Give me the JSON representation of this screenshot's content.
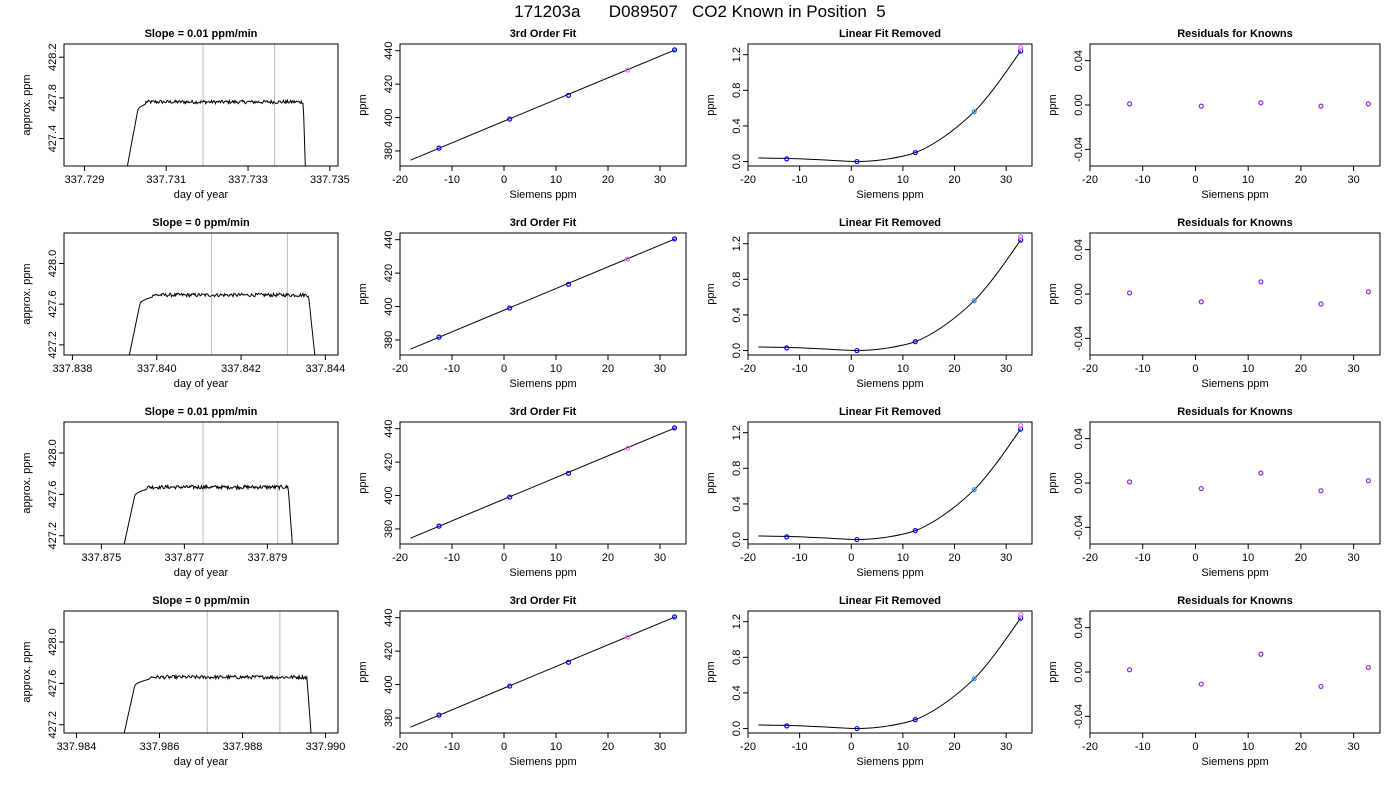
{
  "figure": {
    "title": "171203a      D089507   CO2 Known in Position  5"
  },
  "chart_data": [
    {
      "type": "line",
      "title": "Slope =  0.01  ppm/min",
      "xlabel": "day of year",
      "ylabel": "approx. ppm",
      "xlim": [
        337.7285,
        337.7352
      ],
      "ylim": [
        427.13,
        428.33
      ],
      "xticks": [
        "337.729",
        "337.731",
        "337.733",
        "337.735"
      ],
      "xtick_values": [
        337.729,
        337.731,
        337.733,
        337.735
      ],
      "yticks": [
        "427.4",
        "427.8",
        "428.2"
      ],
      "ytick_values": [
        427.4,
        427.8,
        428.2
      ],
      "vlines": [
        337.7319,
        337.73365
      ],
      "shape": {
        "x_start": 337.73005,
        "x_rise": 337.7303,
        "x_plateau": 337.7305,
        "x_fall_start": 337.73435,
        "x_end": 337.7344,
        "start_y": 427.13,
        "plateau_y": 427.76,
        "end_y": 427.13
      }
    },
    {
      "type": "line",
      "title": "3rd Order Fit",
      "xlabel": "Siemens ppm",
      "ylabel": "ppm",
      "xlim": [
        -20,
        35
      ],
      "ylim": [
        371,
        444
      ],
      "xticks": [
        "-20",
        "-10",
        "0",
        "10",
        "20",
        "30"
      ],
      "xtick_values": [
        -20,
        -10,
        0,
        10,
        20,
        30
      ],
      "yticks": [
        "380",
        "400",
        "420",
        "440"
      ],
      "ytick_values": [
        380,
        400,
        420,
        440
      ],
      "fit_line": {
        "x": [
          -18,
          33
        ],
        "y": [
          374.5,
          440.6
        ]
      },
      "points": [
        {
          "x": -12.5,
          "y": 381.7,
          "color": "#0000ff"
        },
        {
          "x": 1.1,
          "y": 399.1,
          "color": "#0000ff"
        },
        {
          "x": 12.4,
          "y": 413.3,
          "color": "#0000ff"
        },
        {
          "x": 23.8,
          "y": 428.4,
          "color": "#ff66ff"
        },
        {
          "x": 32.8,
          "y": 440.5,
          "color": "#0000ff"
        }
      ]
    },
    {
      "type": "line",
      "title": "Linear Fit Removed",
      "xlabel": "Siemens ppm",
      "ylabel": "ppm",
      "xlim": [
        -20,
        35
      ],
      "ylim": [
        -0.05,
        1.32
      ],
      "xticks": [
        "-20",
        "-10",
        "0",
        "10",
        "20",
        "30"
      ],
      "xtick_values": [
        -20,
        -10,
        0,
        10,
        20,
        30
      ],
      "yticks": [
        "0.0",
        "0.4",
        "0.8",
        "1.2"
      ],
      "ytick_values": [
        0,
        0.4,
        0.8,
        1.2
      ],
      "fit_curve": {
        "x": [
          -18,
          -12.5,
          -6,
          1.1,
          6,
          12.4,
          18,
          23.8,
          28,
          32.8
        ],
        "y": [
          0.04,
          0.035,
          0.02,
          0.0,
          0.02,
          0.1,
          0.28,
          0.56,
          0.85,
          1.24
        ]
      },
      "points": [
        {
          "x": -12.5,
          "y": 0.03,
          "color": "#0000ff"
        },
        {
          "x": 1.1,
          "y": 0.0,
          "color": "#0000ff"
        },
        {
          "x": 12.4,
          "y": 0.1,
          "color": "#0000ff"
        },
        {
          "x": 23.8,
          "y": 0.56,
          "color": "#1e90ff"
        },
        {
          "x": 32.8,
          "y": 1.24,
          "color": "#0000ff"
        },
        {
          "x": 32.8,
          "y": 1.28,
          "color": "#ff66ff"
        }
      ]
    },
    {
      "type": "scatter",
      "title": "Residuals for Knowns",
      "xlabel": "Siemens ppm",
      "ylabel": "ppm",
      "xlim": [
        -20,
        35
      ],
      "ylim": [
        -0.055,
        0.055
      ],
      "xticks": [
        "-20",
        "-10",
        "0",
        "10",
        "20",
        "30"
      ],
      "xtick_values": [
        -20,
        -10,
        0,
        10,
        20,
        30
      ],
      "yticks": [
        "-0.04",
        "0.00",
        "0.04"
      ],
      "ytick_values": [
        -0.04,
        0,
        0.04
      ],
      "points": [
        {
          "x": -12.5,
          "y": 0.001,
          "color": "#8a2be2"
        },
        {
          "x": 1.1,
          "y": -0.001,
          "color": "#8a2be2"
        },
        {
          "x": 12.4,
          "y": 0.002,
          "color": "#8a2be2"
        },
        {
          "x": 23.8,
          "y": -0.001,
          "color": "#8a2be2"
        },
        {
          "x": 32.8,
          "y": 0.001,
          "color": "#8a2be2"
        }
      ]
    },
    {
      "type": "line",
      "title": "Slope =  0  ppm/min",
      "xlabel": "day of year",
      "ylabel": "approx. ppm",
      "xlim": [
        337.8378,
        337.8443
      ],
      "ylim": [
        427.1,
        428.3
      ],
      "xticks": [
        "337.838",
        "337.840",
        "337.842",
        "337.844"
      ],
      "xtick_values": [
        337.838,
        337.84,
        337.842,
        337.844
      ],
      "yticks": [
        "427.2",
        "427.6",
        "428.0"
      ],
      "ytick_values": [
        427.2,
        427.6,
        428.0
      ],
      "vlines": [
        337.8413,
        337.8431
      ],
      "shape": {
        "x_start": 337.83935,
        "x_rise": 337.8396,
        "x_plateau": 337.8399,
        "x_fall_start": 337.8436,
        "x_end": 337.84375,
        "start_y": 427.1,
        "plateau_y": 427.69,
        "end_y": 427.1
      }
    },
    {
      "type": "line",
      "title": "3rd Order Fit",
      "xlabel": "Siemens ppm",
      "ylabel": "ppm",
      "xlim": [
        -20,
        35
      ],
      "ylim": [
        371,
        444
      ],
      "xticks": [
        "-20",
        "-10",
        "0",
        "10",
        "20",
        "30"
      ],
      "xtick_values": [
        -20,
        -10,
        0,
        10,
        20,
        30
      ],
      "yticks": [
        "380",
        "400",
        "420",
        "440"
      ],
      "ytick_values": [
        380,
        400,
        420,
        440
      ],
      "fit_line": {
        "x": [
          -18,
          33
        ],
        "y": [
          374.5,
          440.6
        ]
      },
      "points": [
        {
          "x": -12.5,
          "y": 381.7,
          "color": "#0000ff"
        },
        {
          "x": 1.1,
          "y": 399.1,
          "color": "#0000ff"
        },
        {
          "x": 12.4,
          "y": 413.3,
          "color": "#0000ff"
        },
        {
          "x": 23.8,
          "y": 428.4,
          "color": "#ff66ff"
        },
        {
          "x": 32.8,
          "y": 440.5,
          "color": "#0000ff"
        }
      ]
    },
    {
      "type": "line",
      "title": "Linear Fit Removed",
      "xlabel": "Siemens ppm",
      "ylabel": "ppm",
      "xlim": [
        -20,
        35
      ],
      "ylim": [
        -0.05,
        1.32
      ],
      "xticks": [
        "-20",
        "-10",
        "0",
        "10",
        "20",
        "30"
      ],
      "xtick_values": [
        -20,
        -10,
        0,
        10,
        20,
        30
      ],
      "yticks": [
        "0.0",
        "0.4",
        "0.8",
        "1.2"
      ],
      "ytick_values": [
        0,
        0.4,
        0.8,
        1.2
      ],
      "fit_curve": {
        "x": [
          -18,
          -12.5,
          -6,
          1.1,
          6,
          12.4,
          18,
          23.8,
          28,
          32.8
        ],
        "y": [
          0.04,
          0.035,
          0.02,
          0.0,
          0.02,
          0.1,
          0.28,
          0.56,
          0.85,
          1.24
        ]
      },
      "points": [
        {
          "x": -12.5,
          "y": 0.03,
          "color": "#0000ff"
        },
        {
          "x": 1.1,
          "y": 0.0,
          "color": "#0000ff"
        },
        {
          "x": 12.4,
          "y": 0.1,
          "color": "#0000ff"
        },
        {
          "x": 23.8,
          "y": 0.56,
          "color": "#1e90ff"
        },
        {
          "x": 32.8,
          "y": 1.24,
          "color": "#0000ff"
        },
        {
          "x": 32.8,
          "y": 1.28,
          "color": "#ff66ff"
        }
      ]
    },
    {
      "type": "scatter",
      "title": "Residuals for Knowns",
      "xlabel": "Siemens ppm",
      "ylabel": "ppm",
      "xlim": [
        -20,
        35
      ],
      "ylim": [
        -0.055,
        0.055
      ],
      "xticks": [
        "-20",
        "-10",
        "0",
        "10",
        "20",
        "30"
      ],
      "xtick_values": [
        -20,
        -10,
        0,
        10,
        20,
        30
      ],
      "yticks": [
        "-0.04",
        "0.00",
        "0.04"
      ],
      "ytick_values": [
        -0.04,
        0,
        0.04
      ],
      "points": [
        {
          "x": -12.5,
          "y": 0.001,
          "color": "#8a2be2"
        },
        {
          "x": 1.1,
          "y": -0.007,
          "color": "#8a2be2"
        },
        {
          "x": 12.4,
          "y": 0.011,
          "color": "#8a2be2"
        },
        {
          "x": 23.8,
          "y": -0.009,
          "color": "#8a2be2"
        },
        {
          "x": 32.8,
          "y": 0.002,
          "color": "#8a2be2"
        }
      ]
    },
    {
      "type": "line",
      "title": "Slope =  0.01  ppm/min",
      "xlabel": "day of year",
      "ylabel": "approx. ppm",
      "xlim": [
        337.8741,
        337.8807
      ],
      "ylim": [
        427.12,
        428.3
      ],
      "xticks": [
        "337.875",
        "337.877",
        "337.879"
      ],
      "xtick_values": [
        337.875,
        337.877,
        337.879
      ],
      "yticks": [
        "427.2",
        "427.6",
        "428.0"
      ],
      "ytick_values": [
        427.2,
        427.6,
        428.0
      ],
      "vlines": [
        337.87745,
        337.87925
      ],
      "shape": {
        "x_start": 337.87555,
        "x_rise": 337.8758,
        "x_plateau": 337.8761,
        "x_fall_start": 337.8795,
        "x_end": 337.8796,
        "start_y": 427.12,
        "plateau_y": 427.67,
        "end_y": 427.12
      }
    },
    {
      "type": "line",
      "title": "3rd Order Fit",
      "xlabel": "Siemens ppm",
      "ylabel": "ppm",
      "xlim": [
        -20,
        35
      ],
      "ylim": [
        371,
        444
      ],
      "xticks": [
        "-20",
        "-10",
        "0",
        "10",
        "20",
        "30"
      ],
      "xtick_values": [
        -20,
        -10,
        0,
        10,
        20,
        30
      ],
      "yticks": [
        "380",
        "400",
        "420",
        "440"
      ],
      "ytick_values": [
        380,
        400,
        420,
        440
      ],
      "fit_line": {
        "x": [
          -18,
          33
        ],
        "y": [
          374.5,
          440.6
        ]
      },
      "points": [
        {
          "x": -12.5,
          "y": 381.7,
          "color": "#0000ff"
        },
        {
          "x": 1.1,
          "y": 399.1,
          "color": "#0000ff"
        },
        {
          "x": 12.4,
          "y": 413.3,
          "color": "#0000ff"
        },
        {
          "x": 23.8,
          "y": 428.4,
          "color": "#ff66ff"
        },
        {
          "x": 32.8,
          "y": 440.5,
          "color": "#0000ff"
        }
      ]
    },
    {
      "type": "line",
      "title": "Linear Fit Removed",
      "xlabel": "Siemens ppm",
      "ylabel": "ppm",
      "xlim": [
        -20,
        35
      ],
      "ylim": [
        -0.05,
        1.32
      ],
      "xticks": [
        "-20",
        "-10",
        "0",
        "10",
        "20",
        "30"
      ],
      "xtick_values": [
        -20,
        -10,
        0,
        10,
        20,
        30
      ],
      "yticks": [
        "0.0",
        "0.4",
        "0.8",
        "1.2"
      ],
      "ytick_values": [
        0,
        0.4,
        0.8,
        1.2
      ],
      "fit_curve": {
        "x": [
          -18,
          -12.5,
          -6,
          1.1,
          6,
          12.4,
          18,
          23.8,
          28,
          32.8
        ],
        "y": [
          0.04,
          0.035,
          0.02,
          0.0,
          0.02,
          0.1,
          0.28,
          0.56,
          0.85,
          1.24
        ]
      },
      "points": [
        {
          "x": -12.5,
          "y": 0.03,
          "color": "#0000ff"
        },
        {
          "x": 1.1,
          "y": 0.0,
          "color": "#0000ff"
        },
        {
          "x": 12.4,
          "y": 0.1,
          "color": "#0000ff"
        },
        {
          "x": 23.8,
          "y": 0.56,
          "color": "#1e90ff"
        },
        {
          "x": 32.8,
          "y": 1.24,
          "color": "#0000ff"
        },
        {
          "x": 32.8,
          "y": 1.28,
          "color": "#ff66ff"
        }
      ]
    },
    {
      "type": "scatter",
      "title": "Residuals for Knowns",
      "xlabel": "Siemens ppm",
      "ylabel": "ppm",
      "xlim": [
        -20,
        35
      ],
      "ylim": [
        -0.055,
        0.055
      ],
      "xticks": [
        "-20",
        "-10",
        "0",
        "10",
        "20",
        "30"
      ],
      "xtick_values": [
        -20,
        -10,
        0,
        10,
        20,
        30
      ],
      "yticks": [
        "-0.04",
        "0.00",
        "0.04"
      ],
      "ytick_values": [
        -0.04,
        0,
        0.04
      ],
      "points": [
        {
          "x": -12.5,
          "y": 0.001,
          "color": "#8a2be2"
        },
        {
          "x": 1.1,
          "y": -0.005,
          "color": "#8a2be2"
        },
        {
          "x": 12.4,
          "y": 0.009,
          "color": "#8a2be2"
        },
        {
          "x": 23.8,
          "y": -0.007,
          "color": "#8a2be2"
        },
        {
          "x": 32.8,
          "y": 0.002,
          "color": "#8a2be2"
        }
      ]
    },
    {
      "type": "line",
      "title": "Slope =  0  ppm/min",
      "xlabel": "day of year",
      "ylabel": "approx. ppm",
      "xlim": [
        337.9837,
        337.9903
      ],
      "ylim": [
        427.12,
        428.3
      ],
      "xticks": [
        "337.984",
        "337.986",
        "337.988",
        "337.990"
      ],
      "xtick_values": [
        337.984,
        337.986,
        337.988,
        337.99
      ],
      "yticks": [
        "427.2",
        "427.6",
        "428.0"
      ],
      "ytick_values": [
        427.2,
        427.6,
        428.0
      ],
      "vlines": [
        337.98715,
        337.9889
      ],
      "shape": {
        "x_start": 337.98515,
        "x_rise": 337.9854,
        "x_plateau": 337.98575,
        "x_fall_start": 337.98955,
        "x_end": 337.98965,
        "start_y": 427.12,
        "plateau_y": 427.66,
        "end_y": 427.12
      }
    },
    {
      "type": "line",
      "title": "3rd Order Fit",
      "xlabel": "Siemens ppm",
      "ylabel": "ppm",
      "xlim": [
        -20,
        35
      ],
      "ylim": [
        371,
        444
      ],
      "xticks": [
        "-20",
        "-10",
        "0",
        "10",
        "20",
        "30"
      ],
      "xtick_values": [
        -20,
        -10,
        0,
        10,
        20,
        30
      ],
      "yticks": [
        "380",
        "400",
        "420",
        "440"
      ],
      "ytick_values": [
        380,
        400,
        420,
        440
      ],
      "fit_line": {
        "x": [
          -18,
          33
        ],
        "y": [
          374.5,
          440.6
        ]
      },
      "points": [
        {
          "x": -12.5,
          "y": 381.7,
          "color": "#0000ff"
        },
        {
          "x": 1.1,
          "y": 399.1,
          "color": "#0000ff"
        },
        {
          "x": 12.4,
          "y": 413.3,
          "color": "#0000ff"
        },
        {
          "x": 23.8,
          "y": 428.4,
          "color": "#ff66ff"
        },
        {
          "x": 32.8,
          "y": 440.5,
          "color": "#0000ff"
        }
      ]
    },
    {
      "type": "line",
      "title": "Linear Fit Removed",
      "xlabel": "Siemens ppm",
      "ylabel": "ppm",
      "xlim": [
        -20,
        35
      ],
      "ylim": [
        -0.05,
        1.32
      ],
      "xticks": [
        "-20",
        "-10",
        "0",
        "10",
        "20",
        "30"
      ],
      "xtick_values": [
        -20,
        -10,
        0,
        10,
        20,
        30
      ],
      "yticks": [
        "0.0",
        "0.4",
        "0.8",
        "1.2"
      ],
      "ytick_values": [
        0,
        0.4,
        0.8,
        1.2
      ],
      "fit_curve": {
        "x": [
          -18,
          -12.5,
          -6,
          1.1,
          6,
          12.4,
          18,
          23.8,
          28,
          32.8
        ],
        "y": [
          0.04,
          0.035,
          0.02,
          0.0,
          0.02,
          0.1,
          0.28,
          0.56,
          0.85,
          1.24
        ]
      },
      "points": [
        {
          "x": -12.5,
          "y": 0.03,
          "color": "#0000ff"
        },
        {
          "x": 1.1,
          "y": 0.0,
          "color": "#0000ff"
        },
        {
          "x": 12.4,
          "y": 0.1,
          "color": "#0000ff"
        },
        {
          "x": 23.8,
          "y": 0.56,
          "color": "#1e90ff"
        },
        {
          "x": 32.8,
          "y": 1.24,
          "color": "#0000ff"
        },
        {
          "x": 32.8,
          "y": 1.28,
          "color": "#ff66ff"
        }
      ]
    },
    {
      "type": "scatter",
      "title": "Residuals for Knowns",
      "xlabel": "Siemens ppm",
      "ylabel": "ppm",
      "xlim": [
        -20,
        35
      ],
      "ylim": [
        -0.055,
        0.055
      ],
      "xticks": [
        "-20",
        "-10",
        "0",
        "10",
        "20",
        "30"
      ],
      "xtick_values": [
        -20,
        -10,
        0,
        10,
        20,
        30
      ],
      "yticks": [
        "-0.04",
        "0.00",
        "0.04"
      ],
      "ytick_values": [
        -0.04,
        0,
        0.04
      ],
      "points": [
        {
          "x": -12.5,
          "y": 0.002,
          "color": "#8a2be2"
        },
        {
          "x": 1.1,
          "y": -0.011,
          "color": "#8a2be2"
        },
        {
          "x": 12.4,
          "y": 0.016,
          "color": "#8a2be2"
        },
        {
          "x": 23.8,
          "y": -0.013,
          "color": "#8a2be2"
        },
        {
          "x": 32.8,
          "y": 0.004,
          "color": "#8a2be2"
        }
      ]
    }
  ]
}
